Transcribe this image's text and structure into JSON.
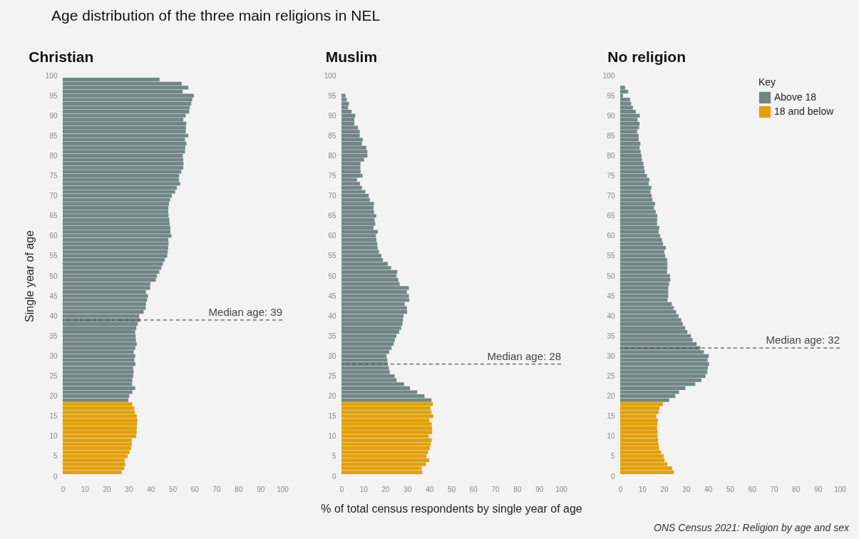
{
  "chart_data": [
    {
      "type": "bar",
      "orientation": "horizontal",
      "title": "Christian",
      "ylabel": "Single year of age",
      "annotations": [
        "Age distribution of the three main religions in NEL"
      ],
      "xlim": [
        0,
        100
      ],
      "xticks": [
        0,
        10,
        20,
        30,
        40,
        50,
        60,
        70,
        80,
        90,
        100
      ],
      "ylim": [
        0,
        100
      ],
      "yticks": [
        0,
        5,
        10,
        15,
        20,
        25,
        30,
        35,
        40,
        45,
        50,
        55,
        60,
        65,
        70,
        75,
        80,
        85,
        90,
        95,
        100
      ],
      "ref_lines": [
        {
          "axis": "y",
          "value": 39,
          "label": "Median age: 39",
          "color": "#555555",
          "line_style": "dashed"
        }
      ],
      "series": [
        {
          "color": "#728686",
          "x": [
            19,
            20,
            21,
            22,
            23,
            24,
            25,
            26,
            27,
            28,
            29,
            30,
            31,
            32,
            33,
            34,
            35,
            36,
            37,
            38,
            39,
            40,
            41,
            42,
            43,
            44,
            45,
            46,
            47,
            48,
            49,
            50,
            51,
            52,
            53,
            54,
            55,
            56,
            57,
            58,
            59,
            60,
            61,
            62,
            63,
            64,
            65,
            66,
            67,
            68,
            69,
            70,
            71,
            72,
            73,
            74,
            75,
            76,
            77,
            78,
            79,
            80,
            81,
            82,
            83,
            84,
            85,
            86,
            87,
            88,
            89,
            90,
            91,
            92,
            93,
            94,
            95,
            96,
            97,
            98,
            99
          ],
          "values": [
            29.9,
            30.3,
            31.7,
            33.0,
            31.6,
            31.7,
            32.1,
            32.3,
            32.1,
            33.1,
            32.6,
            33.0,
            32.3,
            33.1,
            33.7,
            33.3,
            33.2,
            33.0,
            33.5,
            34.1,
            35.2,
            34.8,
            36.8,
            37.8,
            37.9,
            38.4,
            38.8,
            37.9,
            39.8,
            39.9,
            42.4,
            42.9,
            44.0,
            44.9,
            45.6,
            46.5,
            47.6,
            47.8,
            48.0,
            48.2,
            48.1,
            49.5,
            49.0,
            49.0,
            48.7,
            48.5,
            48.2,
            48.1,
            48.1,
            48.4,
            48.9,
            49.7,
            51.2,
            52.0,
            53.5,
            52.9,
            53.0,
            54.0,
            54.9,
            55.0,
            54.9,
            54.7,
            55.7,
            55.8,
            56.4,
            55.7,
            57.2,
            56.0,
            56.1,
            56.3,
            54.9,
            56.0,
            57.6,
            57.9,
            58.5,
            59.0,
            59.7,
            54.6,
            57.2,
            54.2,
            44.1
          ]
        },
        {
          "color": "#e2a100",
          "x": [
            1,
            2,
            3,
            4,
            5,
            6,
            7,
            8,
            9,
            10,
            11,
            12,
            13,
            14,
            15,
            16,
            17,
            18
          ],
          "values": [
            26.8,
            28.0,
            28.5,
            28.2,
            29.6,
            30.4,
            31.1,
            31.5,
            31.4,
            33.5,
            33.7,
            33.7,
            33.8,
            34.0,
            33.7,
            32.9,
            32.6,
            31.7
          ]
        }
      ]
    },
    {
      "type": "bar",
      "orientation": "horizontal",
      "title": "Muslim",
      "xlabel": "% of total census respondents by single year of age",
      "xlim": [
        0,
        100
      ],
      "xticks": [
        0,
        10,
        20,
        30,
        40,
        50,
        60,
        70,
        80,
        90,
        100
      ],
      "ylim": [
        0,
        100
      ],
      "yticks": [
        0,
        5,
        10,
        15,
        20,
        25,
        30,
        35,
        40,
        45,
        50,
        55,
        60,
        65,
        70,
        75,
        80,
        85,
        90,
        95,
        100
      ],
      "ref_lines": [
        {
          "axis": "y",
          "value": 28,
          "label": "Median age: 28",
          "color": "#555555",
          "line_style": "dashed"
        }
      ],
      "series": [
        {
          "color": "#728686",
          "x": [
            19,
            20,
            21,
            22,
            23,
            24,
            25,
            26,
            27,
            28,
            29,
            30,
            31,
            32,
            33,
            34,
            35,
            36,
            37,
            38,
            39,
            40,
            41,
            42,
            43,
            44,
            45,
            46,
            47,
            48,
            49,
            50,
            51,
            52,
            53,
            54,
            55,
            56,
            57,
            58,
            59,
            60,
            61,
            62,
            63,
            64,
            65,
            66,
            67,
            68,
            69,
            70,
            71,
            72,
            73,
            74,
            75,
            76,
            77,
            78,
            79,
            80,
            81,
            82,
            83,
            84,
            85,
            86,
            87,
            88,
            89,
            90,
            91,
            92,
            93,
            94,
            95
          ],
          "values": [
            41.0,
            37.8,
            34.5,
            31.2,
            28.5,
            25.1,
            24.2,
            22.0,
            21.6,
            21.1,
            20.9,
            20.5,
            21.7,
            22.8,
            23.8,
            24.3,
            25.0,
            26.3,
            27.2,
            27.8,
            28.0,
            28.3,
            29.9,
            29.8,
            28.8,
            30.9,
            30.7,
            29.8,
            30.7,
            26.5,
            25.9,
            25.1,
            25.4,
            22.6,
            21.1,
            18.9,
            18.2,
            17.1,
            16.5,
            16.3,
            15.9,
            15.7,
            16.6,
            14.6,
            15.4,
            15.1,
            15.8,
            14.8,
            14.6,
            14.8,
            12.9,
            12.4,
            10.9,
            9.3,
            8.4,
            7.1,
            9.6,
            8.7,
            8.6,
            8.7,
            10.3,
            11.8,
            11.8,
            11.3,
            9.3,
            9.7,
            8.3,
            8.3,
            7.5,
            5.9,
            5.9,
            6.3,
            4.6,
            3.0,
            3.4,
            2.4,
            1.8
          ]
        },
        {
          "color": "#e2a100",
          "x": [
            1,
            2,
            3,
            4,
            5,
            6,
            7,
            8,
            9,
            10,
            11,
            12,
            13,
            14,
            15,
            16,
            17,
            18
          ],
          "values": [
            36.8,
            36.5,
            38.5,
            39.9,
            38.7,
            39.5,
            40.2,
            40.7,
            41.1,
            39.7,
            41.3,
            41.3,
            41.1,
            40.0,
            41.8,
            41.0,
            40.5,
            41.6
          ]
        }
      ]
    },
    {
      "type": "bar",
      "orientation": "horizontal",
      "title": "No religion",
      "legend": "top right",
      "legend_title": "Key",
      "annotations": [
        "ONS Census 2021: Religion by age and sex"
      ],
      "xlim": [
        0,
        100
      ],
      "xticks": [
        0,
        10,
        20,
        30,
        40,
        50,
        60,
        70,
        80,
        90,
        100
      ],
      "ylim": [
        0,
        100
      ],
      "yticks": [
        0,
        5,
        10,
        15,
        20,
        25,
        30,
        35,
        40,
        45,
        50,
        55,
        60,
        65,
        70,
        75,
        80,
        85,
        90,
        95,
        100
      ],
      "ref_lines": [
        {
          "axis": "y",
          "value": 32,
          "label": "Median age: 32",
          "color": "#555555",
          "line_style": "dashed"
        }
      ],
      "series": [
        {
          "name": "Above 18",
          "color": "#728686",
          "x": [
            19,
            20,
            21,
            22,
            23,
            24,
            25,
            26,
            27,
            28,
            29,
            30,
            31,
            32,
            33,
            34,
            35,
            36,
            37,
            38,
            39,
            40,
            41,
            42,
            43,
            44,
            45,
            46,
            47,
            48,
            49,
            50,
            51,
            52,
            53,
            54,
            55,
            56,
            57,
            58,
            59,
            60,
            61,
            62,
            63,
            64,
            65,
            66,
            67,
            68,
            69,
            70,
            71,
            72,
            73,
            74,
            75,
            76,
            77,
            78,
            79,
            80,
            81,
            82,
            83,
            84,
            85,
            86,
            87,
            88,
            89,
            90,
            91,
            92,
            93,
            94,
            95,
            96,
            97
          ],
          "values": [
            22.3,
            25.1,
            26.8,
            29.7,
            34.2,
            37.0,
            38.9,
            39.7,
            39.9,
            40.5,
            39.8,
            40.3,
            38.1,
            36.5,
            34.8,
            33.0,
            32.2,
            30.6,
            29.6,
            28.5,
            27.8,
            26.6,
            25.5,
            24.4,
            23.5,
            21.6,
            21.9,
            21.9,
            21.9,
            22.3,
            22.8,
            22.7,
            21.4,
            21.5,
            21.5,
            21.4,
            20.5,
            20.1,
            20.8,
            19.5,
            19.0,
            18.2,
            17.5,
            17.8,
            16.8,
            16.8,
            16.9,
            16.2,
            15.4,
            15.9,
            14.7,
            14.3,
            13.8,
            14.2,
            13.0,
            13.3,
            12.2,
            11.2,
            10.9,
            10.6,
            9.9,
            9.7,
            9.3,
            8.8,
            9.2,
            8.4,
            8.4,
            7.7,
            8.6,
            8.8,
            7.9,
            8.9,
            7.1,
            5.8,
            5.0,
            4.5,
            1.3,
            3.6,
            2.2
          ]
        },
        {
          "name": "18 and below",
          "color": "#e2a100",
          "x": [
            1,
            2,
            3,
            4,
            5,
            6,
            7,
            8,
            9,
            10,
            11,
            12,
            13,
            14,
            15,
            16,
            17,
            18
          ],
          "values": [
            24.4,
            23.7,
            21.5,
            20.2,
            19.8,
            18.6,
            17.7,
            17.5,
            17.2,
            17.0,
            17.0,
            16.8,
            16.9,
            17.2,
            16.4,
            17.5,
            17.9,
            19.4
          ]
        }
      ]
    }
  ]
}
